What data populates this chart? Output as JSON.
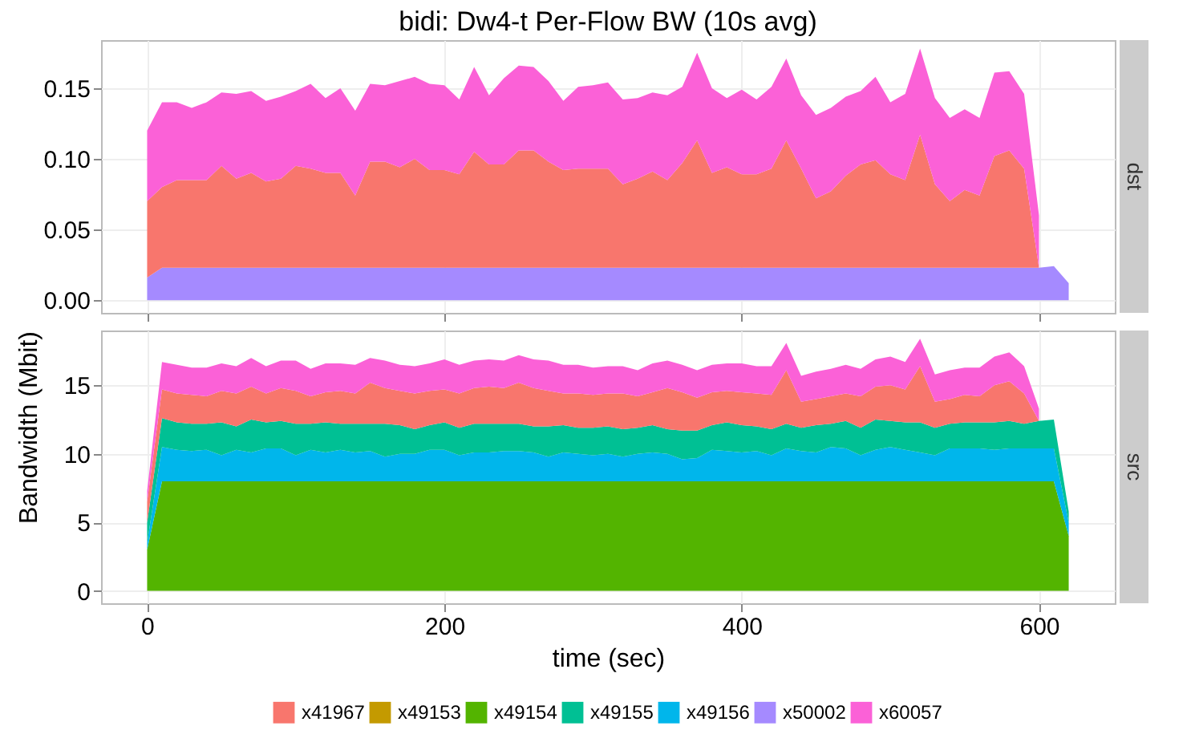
{
  "chart_data": [
    {
      "type": "area",
      "title": "bidi:  Dw4-t Per-Flow BW (10s avg)",
      "stacked": true,
      "annotations": [
        "dst"
      ],
      "tick_labels": "y",
      "grid": true,
      "legend": "bottom",
      "x": [
        0,
        10,
        20,
        30,
        40,
        50,
        60,
        70,
        80,
        90,
        100,
        110,
        120,
        130,
        140,
        150,
        160,
        170,
        180,
        190,
        200,
        210,
        220,
        230,
        240,
        250,
        260,
        270,
        280,
        290,
        300,
        310,
        320,
        330,
        340,
        350,
        360,
        370,
        380,
        390,
        400,
        410,
        420,
        430,
        440,
        450,
        460,
        470,
        480,
        490,
        500,
        510,
        520,
        530,
        540,
        550,
        560,
        570,
        580,
        590,
        600,
        610,
        620
      ],
      "xlim": [
        -31,
        651
      ],
      "xticks": [
        0,
        200,
        400,
        600
      ],
      "ylim": [
        -0.009,
        0.184
      ],
      "yticks": [
        {
          "value": 0,
          "label": "0.00"
        },
        {
          "value": 0.05,
          "label": "0.05"
        },
        {
          "value": 0.1,
          "label": "0.10"
        },
        {
          "value": 0.15,
          "label": "0.15"
        }
      ],
      "series": [
        {
          "name": "x50002",
          "color": "#a58aff",
          "values": [
            0.016,
            0.023,
            0.023,
            0.023,
            0.023,
            0.023,
            0.023,
            0.023,
            0.023,
            0.023,
            0.023,
            0.023,
            0.023,
            0.023,
            0.023,
            0.023,
            0.023,
            0.023,
            0.023,
            0.023,
            0.023,
            0.023,
            0.023,
            0.023,
            0.023,
            0.023,
            0.023,
            0.023,
            0.023,
            0.023,
            0.023,
            0.023,
            0.023,
            0.023,
            0.023,
            0.023,
            0.023,
            0.023,
            0.023,
            0.023,
            0.023,
            0.023,
            0.023,
            0.023,
            0.023,
            0.023,
            0.023,
            0.023,
            0.023,
            0.023,
            0.023,
            0.023,
            0.023,
            0.023,
            0.023,
            0.023,
            0.023,
            0.023,
            0.023,
            0.023,
            0.023,
            0.024,
            0.012
          ]
        },
        {
          "name": "x41967",
          "color": "#f8766d",
          "values": [
            0.054,
            0.057,
            0.062,
            0.062,
            0.062,
            0.072,
            0.063,
            0.067,
            0.061,
            0.063,
            0.072,
            0.07,
            0.067,
            0.067,
            0.051,
            0.075,
            0.075,
            0.071,
            0.077,
            0.069,
            0.069,
            0.066,
            0.082,
            0.073,
            0.073,
            0.083,
            0.083,
            0.075,
            0.069,
            0.07,
            0.07,
            0.07,
            0.059,
            0.063,
            0.068,
            0.062,
            0.074,
            0.09,
            0.067,
            0.071,
            0.066,
            0.066,
            0.07,
            0.09,
            0.07,
            0.049,
            0.054,
            0.065,
            0.073,
            0.076,
            0.066,
            0.062,
            0.094,
            0.059,
            0.047,
            0.055,
            0.051,
            0.079,
            0.083,
            0.07,
            0,
            null,
            null
          ]
        },
        {
          "name": "x60057",
          "color": "#fb61d7",
          "values": [
            0.05,
            0.06,
            0.055,
            0.051,
            0.055,
            0.052,
            0.06,
            0.058,
            0.057,
            0.058,
            0.053,
            0.06,
            0.053,
            0.06,
            0.06,
            0.055,
            0.054,
            0.061,
            0.058,
            0.061,
            0.06,
            0.053,
            0.06,
            0.049,
            0.061,
            0.06,
            0.059,
            0.057,
            0.049,
            0.058,
            0.059,
            0.061,
            0.06,
            0.057,
            0.056,
            0.06,
            0.054,
            0.062,
            0.06,
            0.049,
            0.06,
            0.053,
            0.058,
            0.058,
            0.052,
            0.059,
            0.059,
            0.056,
            0.052,
            0.059,
            0.051,
            0.061,
            0.061,
            0.061,
            0.059,
            0.057,
            0.055,
            0.059,
            0.056,
            0.053,
            0.037,
            null,
            null
          ]
        }
      ]
    },
    {
      "type": "area",
      "xlabel": "time (sec)",
      "ylabel": "Bandwidth (Mbit)",
      "stacked": true,
      "annotations": [
        "src"
      ],
      "grid": true,
      "legend": "bottom",
      "x": [
        0,
        10,
        20,
        30,
        40,
        50,
        60,
        70,
        80,
        90,
        100,
        110,
        120,
        130,
        140,
        150,
        160,
        170,
        180,
        190,
        200,
        210,
        220,
        230,
        240,
        250,
        260,
        270,
        280,
        290,
        300,
        310,
        320,
        330,
        340,
        350,
        360,
        370,
        380,
        390,
        400,
        410,
        420,
        430,
        440,
        450,
        460,
        470,
        480,
        490,
        500,
        510,
        520,
        530,
        540,
        550,
        560,
        570,
        580,
        590,
        600,
        610,
        620
      ],
      "xlim": [
        -31,
        651
      ],
      "xticks": [
        0,
        200,
        400,
        600
      ],
      "ylim": [
        -0.9,
        19
      ],
      "yticks": [
        0,
        5,
        10,
        15
      ],
      "series": [
        {
          "name": "x49154",
          "color": "#53b400",
          "values": [
            3,
            8,
            8,
            8,
            8,
            8,
            8,
            8,
            8,
            8,
            8,
            8,
            8,
            8,
            8,
            8,
            8,
            8,
            8,
            8,
            8,
            8,
            8,
            8,
            8,
            8,
            8,
            8,
            8,
            8,
            8,
            8,
            8,
            8,
            8,
            8,
            8,
            8,
            8,
            8,
            8,
            8,
            8,
            8,
            8,
            8,
            8,
            8,
            8,
            8,
            8,
            8,
            8,
            8,
            8,
            8,
            8,
            8,
            8,
            8,
            8,
            8,
            4
          ]
        },
        {
          "name": "x49156",
          "color": "#00b6eb",
          "values": [
            0.5,
            2.5,
            2.3,
            2.2,
            2.3,
            1.9,
            2.3,
            2.1,
            2.4,
            2.4,
            1.9,
            2.3,
            2.1,
            2.3,
            2.1,
            2.2,
            1.8,
            2.0,
            2.0,
            2.3,
            2.3,
            1.9,
            2.1,
            2.1,
            2.2,
            2.2,
            2.1,
            1.8,
            2.1,
            2.0,
            1.9,
            2.0,
            1.8,
            2.0,
            2.1,
            2.0,
            1.6,
            1.7,
            2.3,
            2.2,
            2.1,
            2.2,
            1.9,
            2.4,
            2.2,
            2.1,
            2.5,
            2.4,
            1.9,
            2.3,
            2.5,
            2.3,
            2.1,
            1.9,
            2.4,
            2.4,
            2.4,
            2.3,
            2.4,
            2.4,
            2.4,
            2.4,
            1
          ]
        },
        {
          "name": "x49155",
          "color": "#00c094",
          "values": [
            1.5,
            2.1,
            2.0,
            2.0,
            1.9,
            2.4,
            1.7,
            2.4,
            1.9,
            2.0,
            2.3,
            1.9,
            2.2,
            1.9,
            2.1,
            2.0,
            2.4,
            2.1,
            1.8,
            1.8,
            2.0,
            2.0,
            2.1,
            2.1,
            2.0,
            2.0,
            1.9,
            2.2,
            2.0,
            1.9,
            2.0,
            2.0,
            2.0,
            1.9,
            2.0,
            1.8,
            2.1,
            2.0,
            1.8,
            2.1,
            2.0,
            1.8,
            1.9,
            1.8,
            1.7,
            2.0,
            1.7,
            2.0,
            2.0,
            2.2,
            1.9,
            2.0,
            2.2,
            2.0,
            1.8,
            1.9,
            1.9,
            2.0,
            2.0,
            1.8,
            2.0,
            2.1,
            0.8
          ]
        },
        {
          "name": "x41967",
          "color": "#f8766d",
          "values": [
            1.5,
            2.1,
            2.1,
            2.1,
            2.0,
            2.3,
            2.4,
            2.4,
            2.1,
            2.4,
            2.4,
            2.0,
            2.2,
            2.4,
            2.2,
            3.0,
            2.6,
            2.5,
            2.6,
            2.5,
            2.4,
            2.5,
            2.6,
            2.7,
            2.6,
            3.0,
            2.8,
            2.6,
            2.3,
            2.5,
            2.4,
            2.4,
            2.6,
            2.3,
            2.4,
            3.0,
            2.8,
            2.4,
            2.4,
            2.3,
            2.4,
            2.4,
            2.5,
            3.9,
            1.9,
            1.9,
            2.0,
            2.0,
            2.3,
            2.4,
            2.6,
            2.4,
            4.1,
            1.9,
            1.8,
            2.0,
            1.9,
            2.7,
            2.9,
            2.2,
            0,
            null,
            null
          ]
        },
        {
          "name": "x60057",
          "color": "#fb61d7",
          "values": [
            0.8,
            2.0,
            2.1,
            2.0,
            2.1,
            2.0,
            2.0,
            2.1,
            2.0,
            2.0,
            2.2,
            2.0,
            2.1,
            2.0,
            2.1,
            1.8,
            2.0,
            1.9,
            2.0,
            2.0,
            2.2,
            2.1,
            2.0,
            2.0,
            2.0,
            2.0,
            2.1,
            2.2,
            2.1,
            2.1,
            2.0,
            2.0,
            2.0,
            1.9,
            2.1,
            2.0,
            2.0,
            2.0,
            2.0,
            2.0,
            2.1,
            2.0,
            2.1,
            2.0,
            1.9,
            2.0,
            2.0,
            2.1,
            2.0,
            2.0,
            2.1,
            2.0,
            2.0,
            2.0,
            2.1,
            2.0,
            2.1,
            2.1,
            2.1,
            2.0,
            0.9,
            null,
            null
          ]
        },
        {
          "name": "x49153",
          "color": "#c49a00",
          "values": [
            null,
            null,
            null,
            null,
            null,
            null,
            null,
            null,
            null,
            null,
            null,
            null,
            null,
            null,
            null,
            null,
            null,
            null,
            null,
            null,
            null,
            null,
            null,
            null,
            null,
            null,
            null,
            null,
            null,
            null,
            null,
            null,
            null,
            null,
            null,
            null,
            null,
            null,
            null,
            null,
            null,
            null,
            null,
            null,
            null,
            null,
            null,
            null,
            null,
            null,
            null,
            null,
            null,
            null,
            null,
            null,
            null,
            null,
            null,
            null,
            null,
            null,
            null
          ]
        }
      ]
    }
  ]
}
